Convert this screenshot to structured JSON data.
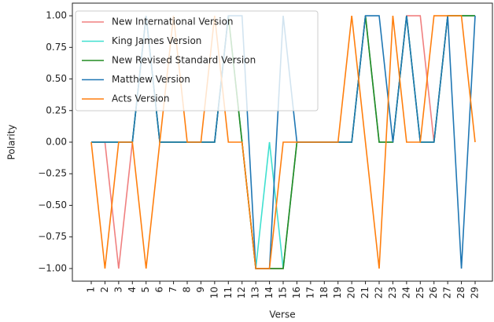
{
  "chart_data": {
    "type": "line",
    "xlabel": "Verse",
    "ylabel": "Polarity",
    "categories": [
      "1",
      "2",
      "3",
      "4",
      "5",
      "6",
      "7",
      "8",
      "9",
      "10",
      "11",
      "12",
      "13",
      "14",
      "15",
      "16",
      "17",
      "18",
      "19",
      "20",
      "21",
      "22",
      "23",
      "24",
      "25",
      "26",
      "27",
      "28",
      "29"
    ],
    "series": [
      {
        "name": "New International Version",
        "color": "#f08080",
        "values": [
          0,
          0,
          -1,
          0,
          1,
          0,
          0,
          0,
          0,
          0,
          1,
          0,
          -1,
          -1,
          -1,
          0,
          0,
          0,
          0,
          0,
          1,
          0,
          0,
          1,
          1,
          0,
          1,
          1,
          1
        ]
      },
      {
        "name": "King James Version",
        "color": "#40e0d0",
        "values": [
          0,
          0,
          0,
          0,
          1,
          0,
          0,
          0,
          0,
          0,
          1,
          0,
          -1,
          0,
          -1,
          0,
          0,
          0,
          0,
          0,
          1,
          0,
          0,
          1,
          0,
          0,
          1,
          1,
          1
        ]
      },
      {
        "name": "New Revised Standard Version",
        "color": "#228b22",
        "values": [
          0,
          0,
          0,
          0,
          1,
          0,
          0,
          0,
          0,
          0,
          1,
          0,
          -1,
          -1,
          -1,
          0,
          0,
          0,
          0,
          0,
          1,
          0,
          0,
          1,
          0,
          0,
          1,
          1,
          1
        ]
      },
      {
        "name": "Matthew Version",
        "color": "#1f77b4",
        "values": [
          0,
          0,
          0,
          0,
          1,
          0,
          0,
          0,
          0,
          0,
          1,
          1,
          -1,
          -1,
          1,
          0,
          0,
          0,
          0,
          0,
          1,
          1,
          0,
          1,
          0,
          0,
          1,
          -1,
          1
        ]
      },
      {
        "name": "Acts Version",
        "color": "#ff7f0e",
        "values": [
          0,
          -1,
          0,
          0,
          -1,
          0,
          1,
          0,
          0,
          1,
          0,
          0,
          -1,
          -1,
          0,
          0,
          0,
          0,
          0,
          1,
          0,
          -1,
          1,
          0,
          0,
          1,
          1,
          1,
          0
        ]
      }
    ],
    "ylim": [
      -1.1,
      1.1
    ],
    "yticks": [
      {
        "value": -1,
        "label": "−1.00"
      },
      {
        "value": -0.75,
        "label": "−0.75"
      },
      {
        "value": -0.5,
        "label": "−0.50"
      },
      {
        "value": -0.25,
        "label": "−0.25"
      },
      {
        "value": 0,
        "label": "0.00"
      },
      {
        "value": 0.25,
        "label": "0.25"
      },
      {
        "value": 0.5,
        "label": "0.50"
      },
      {
        "value": 0.75,
        "label": "0.75"
      },
      {
        "value": 1,
        "label": "1.00"
      }
    ],
    "legend": "upper left",
    "grid": false
  }
}
